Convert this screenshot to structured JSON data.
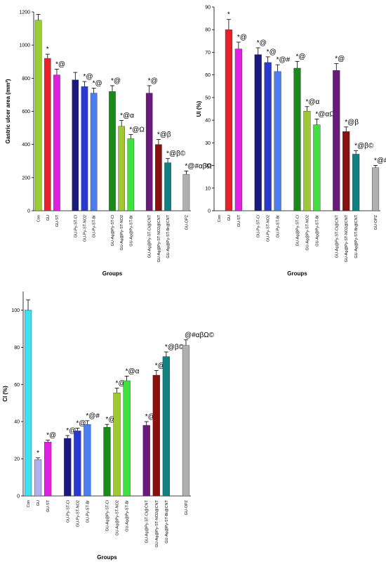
{
  "chart_data": [
    {
      "type": "bar",
      "y_label": "Gastric ulcer area (mm²)",
      "x_label": "Groups",
      "categories": [
        "Con",
        "GU",
        "GU-ST",
        null,
        "GU-Py-ST-Cl",
        "GU-Py-ST-NO2",
        "GU-Py-ST-Br",
        null,
        "GU-Ag@Py-ST-Cl",
        "GU-Ag@Py-ST-NO2",
        "GU-Ag@Py-ST-Br",
        null,
        "GU-Ag@Py-ST-Cl@CNT",
        "GU-Ag@Py-ST-NO2@CNT",
        "GU-Ag@Py-ST-Br@CNT",
        null,
        "GU-OPZ"
      ],
      "values": [
        1150,
        920,
        820,
        null,
        790,
        750,
        710,
        null,
        720,
        510,
        435,
        null,
        710,
        400,
        290,
        null,
        220
      ],
      "errors": [
        35,
        25,
        35,
        null,
        45,
        30,
        30,
        null,
        35,
        35,
        25,
        null,
        45,
        30,
        25,
        null,
        20
      ],
      "annotations": [
        null,
        "*",
        "*@",
        null,
        null,
        "*@",
        "*@",
        null,
        "*@",
        "*@α",
        "*@Ω",
        null,
        "*@",
        "*@β",
        "*@β©",
        null,
        "*@#αβΩ"
      ],
      "colors": [
        "#9acd32",
        "#e8202a",
        "#e020e0",
        null,
        "#1a1a80",
        "#2a3ad0",
        "#4a7ef0",
        null,
        "#1a8a1a",
        "#a0c830",
        "#40e040",
        null,
        "#6a1a7a",
        "#8a1010",
        "#108080",
        null,
        "#b0b0b0"
      ],
      "ylim": [
        0,
        1200
      ],
      "yticks": [
        0,
        200,
        400,
        600,
        800,
        1000,
        1200
      ]
    },
    {
      "type": "bar",
      "y_label": "UI (%)",
      "x_label": "Groups",
      "categories": [
        "Con",
        "GU",
        "GU-ST",
        null,
        "GU-Py-ST-Cl",
        "GU-Py-ST-NO2",
        "GU-Py-ST-Br",
        null,
        "GU-Ag@Py-ST-Cl",
        "GU-Ag@Py-ST-NO2",
        "GU-Ag@Py-ST-Br",
        null,
        "GU-Ag@Py-ST-Cl@CNT",
        "GU-Ag@Py-ST-NO2@CNT",
        "GU-Ag@Py-ST-Br@CNT",
        null,
        "GU-OPZ"
      ],
      "values": [
        0,
        80,
        71.5,
        null,
        69,
        65.5,
        61.5,
        null,
        63,
        44,
        38,
        null,
        62,
        35,
        25,
        null,
        19
      ],
      "errors": [
        null,
        4.5,
        3,
        null,
        3,
        2.5,
        3,
        null,
        3,
        2,
        2.5,
        null,
        3,
        2,
        1.5,
        null,
        1
      ],
      "annotations": [
        null,
        "*",
        "*@",
        null,
        "*@",
        "*@",
        "*@#",
        null,
        "*@",
        "*@α",
        "*@αΩ",
        null,
        "*@",
        "*@β",
        "*@β©",
        null,
        "*@#αβΩ©"
      ],
      "colors": [
        "#9acd32",
        "#e8202a",
        "#e020e0",
        null,
        "#1a1a80",
        "#2a3ad0",
        "#4a7ef0",
        null,
        "#1a8a1a",
        "#a0c830",
        "#40e040",
        null,
        "#6a1a7a",
        "#8a1010",
        "#108080",
        null,
        "#b0b0b0"
      ],
      "ylim": [
        0,
        90
      ],
      "yticks": [
        0,
        10,
        20,
        30,
        40,
        50,
        60,
        70,
        80,
        90
      ]
    },
    {
      "type": "bar",
      "y_label": "CI (%)",
      "x_label": "Groups",
      "categories": [
        "Con",
        "GU",
        "GU-ST",
        null,
        "GU-Py-ST-Cl",
        "GU-Py-ST-NO2",
        "GU-Py-ST-Br",
        null,
        "GU-Ag@Py-ST-Cl",
        "GU-Ag@Py-ST-NO2",
        "GU-Ag@Py-ST-Br",
        null,
        "GU-Ag@Py-ST-Cl@CNT",
        "GU-Ag@Py-ST-NO2@CNT",
        "GU-Ag@Py-ST-Br@CNT",
        null,
        "GU-OPZ"
      ],
      "values": [
        100,
        19.5,
        29,
        null,
        31,
        35,
        38.5,
        null,
        37,
        55.5,
        62,
        null,
        38,
        65,
        75,
        null,
        81
      ],
      "errors": [
        5.5,
        1,
        1,
        null,
        1.5,
        1.5,
        2,
        null,
        1.5,
        2.5,
        2.5,
        null,
        2,
        2.5,
        2.5,
        null,
        3
      ],
      "annotations": [
        null,
        "*",
        "*@",
        null,
        "*@",
        "*@",
        "*@#",
        null,
        "*@",
        "*@α",
        "*@α",
        null,
        "*@",
        "*@β",
        "*@β©",
        null,
        "@#αβΩ©"
      ],
      "colors": [
        "#40e0f0",
        "#b0b0f0",
        "#e020e0",
        null,
        "#1a1a80",
        "#2a3ad0",
        "#4a7ef0",
        null,
        "#1a8a1a",
        "#a0c830",
        "#40e040",
        null,
        "#6a1a7a",
        "#8a1010",
        "#108080",
        null,
        "#b0b0b0"
      ],
      "ylim": [
        0,
        110
      ],
      "yticks": [
        0,
        20,
        40,
        60,
        80,
        100
      ]
    }
  ]
}
